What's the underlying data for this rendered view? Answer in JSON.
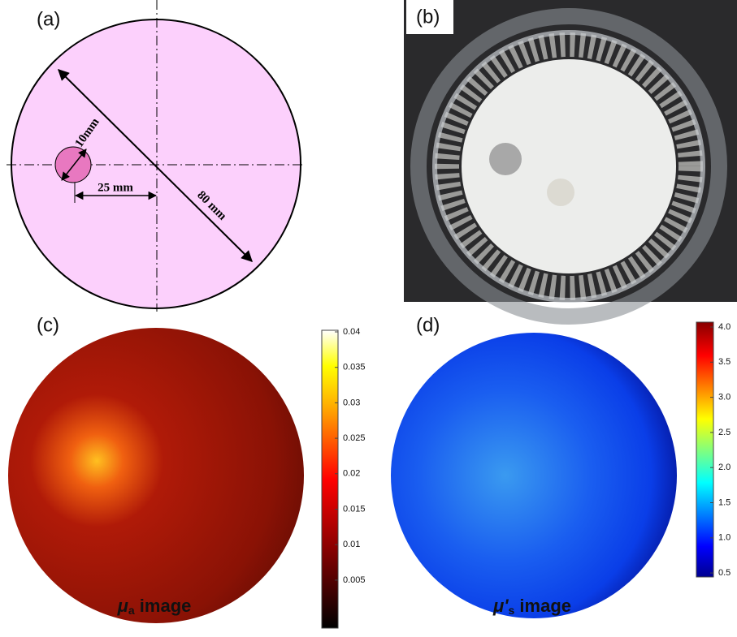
{
  "panels": [
    {
      "label": "(a)",
      "annotations": [
        "10mm",
        "25 mm",
        "80 mm"
      ]
    },
    {
      "label": "(b)"
    },
    {
      "label": "(c)",
      "colorbar_ticks": [
        "0.04",
        "0.035",
        "0.03",
        "0.025",
        "0.02",
        "0.015",
        "0.01",
        "0.005"
      ],
      "caption": {
        "symbol": "μ",
        "subscript": "a",
        "text": " image"
      }
    },
    {
      "label": "(d)",
      "colorbar_ticks": [
        "4.0",
        "3.5",
        "3.0",
        "2.5",
        "2.0",
        "1.5",
        "1.0",
        "0.5"
      ],
      "caption": {
        "symbol": "μ'",
        "subscript": "s",
        "text": " image"
      }
    }
  ]
}
